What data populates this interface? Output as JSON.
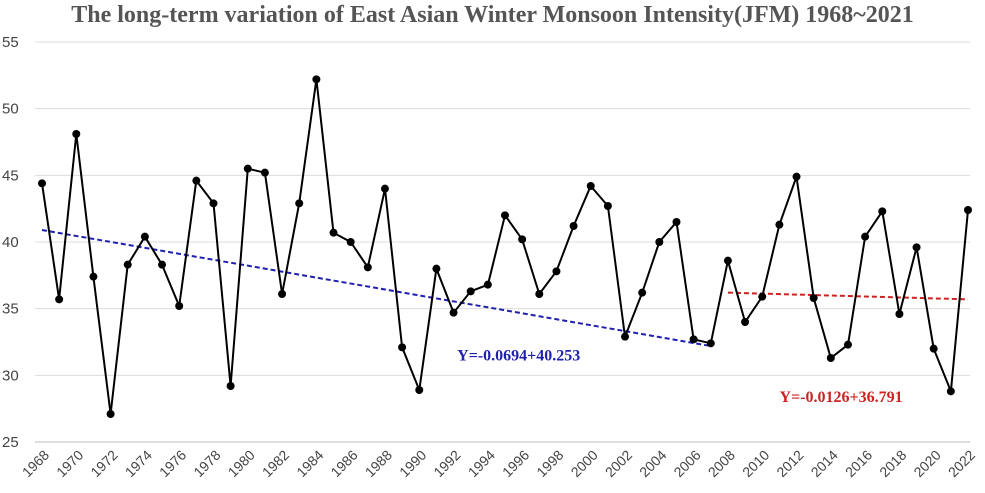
{
  "chart_data": {
    "type": "line",
    "title": "The long-term variation of East Asian Winter Monsoon Intensity(JFM) 1968~2021",
    "xlabel": "",
    "ylabel": "",
    "ylim": [
      25,
      55
    ],
    "yticks": [
      25,
      30,
      35,
      40,
      45,
      50,
      55
    ],
    "xlim": [
      1968,
      2022
    ],
    "xticks": [
      1968,
      1970,
      1972,
      1974,
      1976,
      1978,
      1980,
      1982,
      1984,
      1986,
      1988,
      1990,
      1992,
      1994,
      1996,
      1998,
      2000,
      2002,
      2004,
      2006,
      2008,
      2010,
      2012,
      2014,
      2016,
      2018,
      2020,
      2022
    ],
    "grid": true,
    "series": [
      {
        "name": "",
        "color": "#000000",
        "x": [
          1968,
          1969,
          1970,
          1971,
          1972,
          1973,
          1974,
          1975,
          1976,
          1977,
          1978,
          1979,
          1980,
          1981,
          1982,
          1983,
          1984,
          1985,
          1986,
          1987,
          1988,
          1989,
          1990,
          1991,
          1992,
          1993,
          1994,
          1995,
          1996,
          1997,
          1998,
          1999,
          2000,
          2001,
          2002,
          2003,
          2004,
          2005,
          2006,
          2007,
          2008,
          2009,
          2010,
          2011,
          2012,
          2013,
          2014,
          2015,
          2016,
          2017,
          2018,
          2019,
          2020,
          2021,
          2022
        ],
        "values": [
          44.4,
          35.7,
          48.1,
          37.4,
          27.1,
          38.3,
          40.4,
          38.3,
          35.2,
          44.6,
          42.9,
          29.2,
          45.5,
          45.2,
          36.1,
          42.9,
          52.2,
          40.7,
          40.0,
          38.1,
          44.0,
          32.1,
          28.9,
          38.0,
          34.7,
          36.3,
          36.8,
          42.0,
          40.2,
          36.1,
          37.8,
          41.2,
          44.2,
          42.7,
          32.9,
          36.2,
          40.0,
          41.5,
          32.7,
          32.4,
          38.6,
          34.0,
          35.9,
          41.3,
          44.9,
          35.8,
          31.3,
          32.3,
          40.4,
          42.3,
          34.6,
          39.6,
          32.0,
          28.8,
          42.4
        ]
      }
    ],
    "trend_lines": [
      {
        "label": "Y=-0.0694+40.253",
        "color": "#1f1fb0",
        "x": [
          1968,
          2007
        ],
        "values": [
          40.9,
          32.2
        ]
      },
      {
        "label": "Y=-0.0126+36.791",
        "color": "#cc2222",
        "x": [
          2008,
          2022
        ],
        "values": [
          36.2,
          35.7
        ]
      }
    ]
  }
}
